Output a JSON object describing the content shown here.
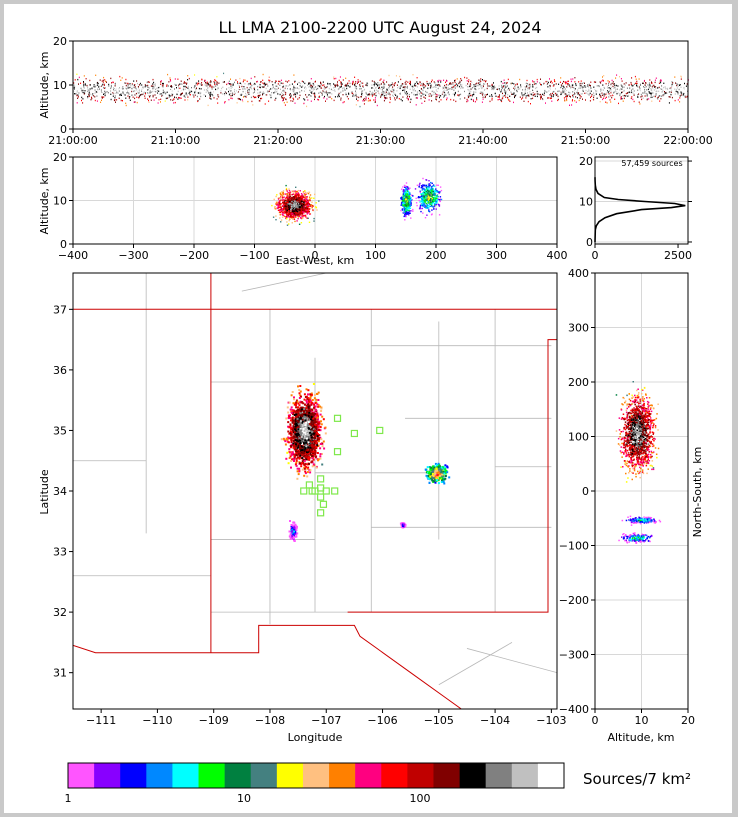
{
  "title": "LL LMA 2100-2200 UTC August 24, 2024",
  "colors": {
    "frame_bg": "#c9c9c9",
    "state_border": "#cc0000",
    "county_line": "#b8b8b8",
    "station_marker": "#7ee84a",
    "grid": "#d8d8d8"
  },
  "colorbar": {
    "label": "Sources/7 km²",
    "ticks": [
      "1",
      "10",
      "100"
    ],
    "colors": [
      "#ff55ff",
      "#8800ff",
      "#0000ff",
      "#0088ff",
      "#00ffff",
      "#00ff00",
      "#008040",
      "#448080",
      "#ffff00",
      "#ffc080",
      "#ff8000",
      "#ff0080",
      "#ff0000",
      "#c00000",
      "#800000",
      "#000000",
      "#808080",
      "#c0c0c0",
      "#ffffff"
    ]
  },
  "chart_data": [
    {
      "id": "time-height",
      "type": "scatter",
      "ylabel": "Altitude, km",
      "xlim": [
        "21:00:00",
        "22:00:00"
      ],
      "ylim": [
        0,
        20
      ],
      "xticks": [
        "21:00:00",
        "21:10:00",
        "21:20:00",
        "21:30:00",
        "21:40:00",
        "21:50:00",
        "22:00:00"
      ],
      "yticks": [
        "0",
        "10",
        "20"
      ],
      "source_band_km": [
        2,
        16
      ],
      "peak_altitude_km": 9
    },
    {
      "id": "ew-altitude",
      "type": "scatter",
      "xlabel": "East-West, km",
      "ylabel": "Altitude, km",
      "xlim": [
        -400,
        400
      ],
      "ylim": [
        0,
        20
      ],
      "xticks": [
        "−400",
        "−300",
        "−200",
        "−100",
        "0",
        "100",
        "200",
        "300",
        "400"
      ],
      "yticks": [
        "0",
        "10",
        "20"
      ],
      "clusters": [
        {
          "x": [
            -70,
            0
          ],
          "alt": [
            0,
            20
          ],
          "core_alt": 9
        },
        {
          "x": [
            140,
            160
          ],
          "alt": [
            4,
            17
          ],
          "core_alt": 10
        },
        {
          "x": [
            165,
            210
          ],
          "alt": [
            4,
            19
          ],
          "core_alt": 11
        }
      ]
    },
    {
      "id": "altitude-histogram",
      "type": "line",
      "annotation": "57,459 sources",
      "xlim": [
        0,
        2800
      ],
      "ylim": [
        0,
        21
      ],
      "xticks": [
        "0",
        "2500"
      ],
      "yticks": [
        "0",
        "10",
        "20"
      ],
      "profile": [
        {
          "alt": 0,
          "count": 0
        },
        {
          "alt": 3,
          "count": 10
        },
        {
          "alt": 4,
          "count": 40
        },
        {
          "alt": 5,
          "count": 120
        },
        {
          "alt": 6,
          "count": 300
        },
        {
          "alt": 7,
          "count": 650
        },
        {
          "alt": 8,
          "count": 1400
        },
        {
          "alt": 8.5,
          "count": 2300
        },
        {
          "alt": 9,
          "count": 2720
        },
        {
          "alt": 9.5,
          "count": 2400
        },
        {
          "alt": 10,
          "count": 1500
        },
        {
          "alt": 10.5,
          "count": 700
        },
        {
          "alt": 11,
          "count": 280
        },
        {
          "alt": 12,
          "count": 90
        },
        {
          "alt": 13,
          "count": 30
        },
        {
          "alt": 14,
          "count": 10
        },
        {
          "alt": 15,
          "count": 3
        },
        {
          "alt": 16,
          "count": 0
        }
      ]
    },
    {
      "id": "plan-view",
      "type": "scatter",
      "xlabel": "Longitude",
      "ylabel": "Latitude",
      "xlim": [
        -111.5,
        -102.9
      ],
      "ylim": [
        30.4,
        37.6
      ],
      "xticks": [
        "−111",
        "−110",
        "−109",
        "−108",
        "−107",
        "−106",
        "−105",
        "−104",
        "−103"
      ],
      "yticks": [
        "31",
        "32",
        "33",
        "34",
        "35",
        "36",
        "37"
      ],
      "clusters": [
        {
          "lon": [
            -107.8,
            -107.0
          ],
          "lat": [
            34.2,
            35.8
          ]
        },
        {
          "lon": [
            -105.3,
            -104.8
          ],
          "lat": [
            34.1,
            34.5
          ]
        },
        {
          "lon": [
            -107.7,
            -107.5
          ],
          "lat": [
            33.1,
            33.6
          ]
        },
        {
          "lon": [
            -105.7,
            -105.6
          ],
          "lat": [
            33.4,
            33.5
          ]
        }
      ],
      "stations": [
        {
          "lon": -106.8,
          "lat": 35.2
        },
        {
          "lon": -106.5,
          "lat": 34.95
        },
        {
          "lon": -106.05,
          "lat": 35.0
        },
        {
          "lon": -106.8,
          "lat": 34.65
        },
        {
          "lon": -107.1,
          "lat": 34.2
        },
        {
          "lon": -107.1,
          "lat": 34.05
        },
        {
          "lon": -107.3,
          "lat": 34.1
        },
        {
          "lon": -107.4,
          "lat": 34.0
        },
        {
          "lon": -107.2,
          "lat": 34.0
        },
        {
          "lon": -107.0,
          "lat": 34.0
        },
        {
          "lon": -106.85,
          "lat": 34.0
        },
        {
          "lon": -107.1,
          "lat": 33.9
        },
        {
          "lon": -107.05,
          "lat": 33.78
        },
        {
          "lon": -107.1,
          "lat": 33.64
        },
        {
          "lon": -107.25,
          "lat": 34.0
        }
      ]
    },
    {
      "id": "altitude-ns",
      "type": "scatter",
      "xlabel": "Altitude, km",
      "ylabel": "North-South, km",
      "xlim": [
        0,
        20
      ],
      "ylim": [
        -400,
        400
      ],
      "xticks": [
        "0",
        "10",
        "20"
      ],
      "yticks": [
        "−400",
        "−300",
        "−200",
        "−100",
        "0",
        "100",
        "200",
        "300",
        "400"
      ],
      "clusters": [
        {
          "alt": [
            2,
            19
          ],
          "ns": [
            20,
            195
          ],
          "core_alt": 9
        },
        {
          "alt": [
            5,
            15
          ],
          "ns": [
            -60,
            -45
          ],
          "core_alt": 10
        },
        {
          "alt": [
            5,
            12
          ],
          "ns": [
            -95,
            -75
          ],
          "core_alt": 9
        }
      ]
    }
  ]
}
